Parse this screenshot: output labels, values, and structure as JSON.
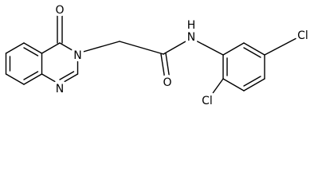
{
  "labels": [
    "O",
    "N",
    "N",
    "O",
    "H",
    "N",
    "Cl",
    "Cl"
  ]
}
